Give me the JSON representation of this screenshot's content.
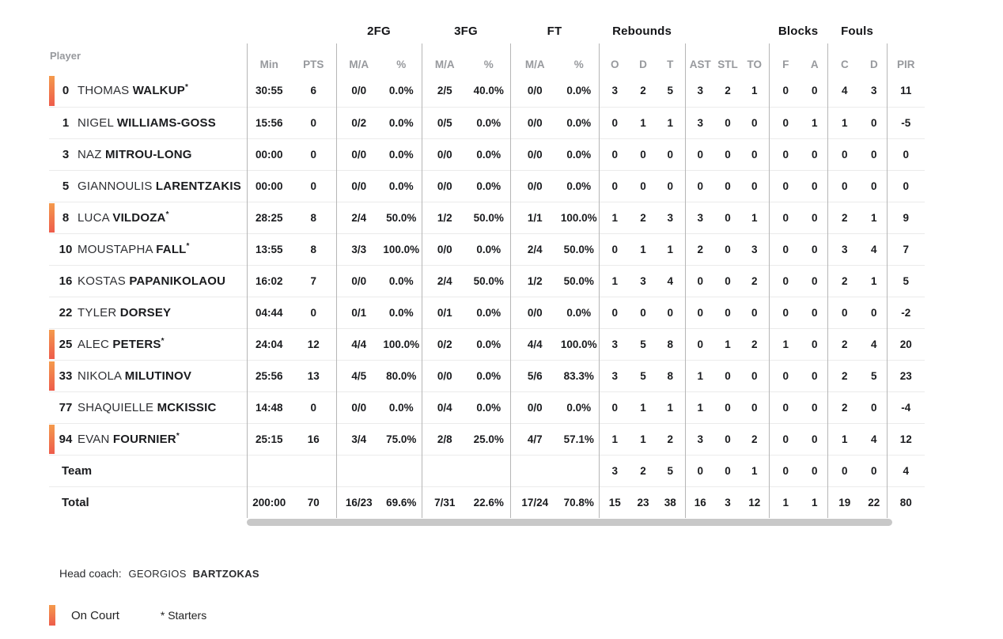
{
  "colors": {
    "on_court_top": "#f49a4c",
    "on_court_bottom": "#ee5c4b",
    "header_text": "#97999d"
  },
  "table": {
    "player_header": "Player",
    "starter_mark": "*",
    "groups": [
      {
        "label": "",
        "span": 2
      },
      {
        "label": "2FG",
        "span": 2
      },
      {
        "label": "3FG",
        "span": 2
      },
      {
        "label": "FT",
        "span": 2
      },
      {
        "label": "Rebounds",
        "span": 3
      },
      {
        "label": "",
        "span": 3
      },
      {
        "label": "Blocks",
        "span": 2
      },
      {
        "label": "Fouls",
        "span": 2
      },
      {
        "label": "",
        "span": 1
      }
    ],
    "columns": [
      "Min",
      "PTS",
      "M/A",
      "%",
      "M/A",
      "%",
      "M/A",
      "%",
      "O",
      "D",
      "T",
      "AST",
      "STL",
      "TO",
      "F",
      "A",
      "C",
      "D",
      "PIR"
    ],
    "rows": [
      {
        "number": "0",
        "first": "THOMAS",
        "last": "WALKUP",
        "starter": true,
        "on_court": true,
        "stats": [
          "30:55",
          "6",
          "0/0",
          "0.0%",
          "2/5",
          "40.0%",
          "0/0",
          "0.0%",
          "3",
          "2",
          "5",
          "3",
          "2",
          "1",
          "0",
          "0",
          "4",
          "3",
          "11"
        ]
      },
      {
        "number": "1",
        "first": "NIGEL",
        "last": "WILLIAMS-GOSS",
        "starter": false,
        "on_court": false,
        "stats": [
          "15:56",
          "0",
          "0/2",
          "0.0%",
          "0/5",
          "0.0%",
          "0/0",
          "0.0%",
          "0",
          "1",
          "1",
          "3",
          "0",
          "0",
          "0",
          "1",
          "1",
          "0",
          "-5"
        ]
      },
      {
        "number": "3",
        "first": "NAZ",
        "last": "MITROU-LONG",
        "starter": false,
        "on_court": false,
        "stats": [
          "00:00",
          "0",
          "0/0",
          "0.0%",
          "0/0",
          "0.0%",
          "0/0",
          "0.0%",
          "0",
          "0",
          "0",
          "0",
          "0",
          "0",
          "0",
          "0",
          "0",
          "0",
          "0"
        ]
      },
      {
        "number": "5",
        "first": "GIANNOULIS",
        "last": "LARENTZAKIS",
        "starter": false,
        "on_court": false,
        "stats": [
          "00:00",
          "0",
          "0/0",
          "0.0%",
          "0/0",
          "0.0%",
          "0/0",
          "0.0%",
          "0",
          "0",
          "0",
          "0",
          "0",
          "0",
          "0",
          "0",
          "0",
          "0",
          "0"
        ]
      },
      {
        "number": "8",
        "first": "LUCA",
        "last": "VILDOZA",
        "starter": true,
        "on_court": true,
        "stats": [
          "28:25",
          "8",
          "2/4",
          "50.0%",
          "1/2",
          "50.0%",
          "1/1",
          "100.0%",
          "1",
          "2",
          "3",
          "3",
          "0",
          "1",
          "0",
          "0",
          "2",
          "1",
          "9"
        ]
      },
      {
        "number": "10",
        "first": "MOUSTAPHA",
        "last": "FALL",
        "starter": true,
        "on_court": false,
        "stats": [
          "13:55",
          "8",
          "3/3",
          "100.0%",
          "0/0",
          "0.0%",
          "2/4",
          "50.0%",
          "0",
          "1",
          "1",
          "2",
          "0",
          "3",
          "0",
          "0",
          "3",
          "4",
          "7"
        ]
      },
      {
        "number": "16",
        "first": "KOSTAS",
        "last": "PAPANIKOLAOU",
        "starter": false,
        "on_court": false,
        "stats": [
          "16:02",
          "7",
          "0/0",
          "0.0%",
          "2/4",
          "50.0%",
          "1/2",
          "50.0%",
          "1",
          "3",
          "4",
          "0",
          "0",
          "2",
          "0",
          "0",
          "2",
          "1",
          "5"
        ]
      },
      {
        "number": "22",
        "first": "TYLER",
        "last": "DORSEY",
        "starter": false,
        "on_court": false,
        "stats": [
          "04:44",
          "0",
          "0/1",
          "0.0%",
          "0/1",
          "0.0%",
          "0/0",
          "0.0%",
          "0",
          "0",
          "0",
          "0",
          "0",
          "0",
          "0",
          "0",
          "0",
          "0",
          "-2"
        ]
      },
      {
        "number": "25",
        "first": "ALEC",
        "last": "PETERS",
        "starter": true,
        "on_court": true,
        "stats": [
          "24:04",
          "12",
          "4/4",
          "100.0%",
          "0/2",
          "0.0%",
          "4/4",
          "100.0%",
          "3",
          "5",
          "8",
          "0",
          "1",
          "2",
          "1",
          "0",
          "2",
          "4",
          "20"
        ]
      },
      {
        "number": "33",
        "first": "NIKOLA",
        "last": "MILUTINOV",
        "starter": false,
        "on_court": true,
        "stats": [
          "25:56",
          "13",
          "4/5",
          "80.0%",
          "0/0",
          "0.0%",
          "5/6",
          "83.3%",
          "3",
          "5",
          "8",
          "1",
          "0",
          "0",
          "0",
          "0",
          "2",
          "5",
          "23"
        ]
      },
      {
        "number": "77",
        "first": "SHAQUIELLE",
        "last": "MCKISSIC",
        "starter": false,
        "on_court": false,
        "stats": [
          "14:48",
          "0",
          "0/0",
          "0.0%",
          "0/4",
          "0.0%",
          "0/0",
          "0.0%",
          "0",
          "1",
          "1",
          "1",
          "0",
          "0",
          "0",
          "0",
          "2",
          "0",
          "-4"
        ]
      },
      {
        "number": "94",
        "first": "EVAN",
        "last": "FOURNIER",
        "starter": true,
        "on_court": true,
        "stats": [
          "25:15",
          "16",
          "3/4",
          "75.0%",
          "2/8",
          "25.0%",
          "4/7",
          "57.1%",
          "1",
          "1",
          "2",
          "3",
          "0",
          "2",
          "0",
          "0",
          "1",
          "4",
          "12"
        ]
      }
    ],
    "team_row": {
      "label": "Team",
      "stats": [
        "",
        "",
        "",
        "",
        "",
        "",
        "",
        "",
        "3",
        "2",
        "5",
        "0",
        "0",
        "1",
        "0",
        "0",
        "0",
        "0",
        "4"
      ]
    },
    "total_row": {
      "label": "Total",
      "stats": [
        "200:00",
        "70",
        "16/23",
        "69.6%",
        "7/31",
        "22.6%",
        "17/24",
        "70.8%",
        "15",
        "23",
        "38",
        "16",
        "3",
        "12",
        "1",
        "1",
        "19",
        "22",
        "80"
      ]
    }
  },
  "footer": {
    "head_coach_label": "Head coach:",
    "head_coach_first_name": "GEORGIOS",
    "head_coach_last_name": "BARTZOKAS",
    "legend_on_court": "On Court",
    "legend_starters": "* Starters"
  }
}
